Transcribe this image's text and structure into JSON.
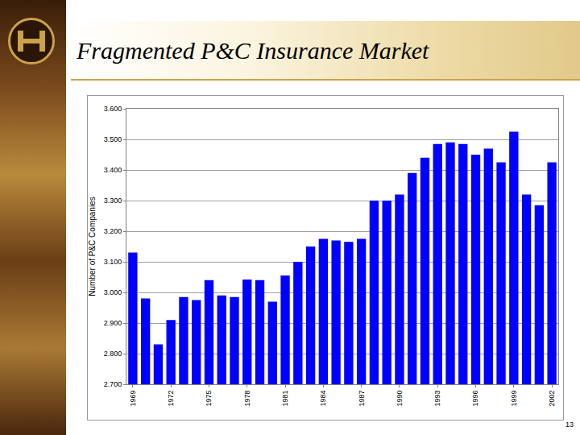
{
  "chart_data": {
    "type": "bar",
    "title": "Fragmented P&C Insurance Market",
    "y_label": "Number of P&C Companies",
    "annotations": [
      "13"
    ],
    "categories": [
      "1969",
      null,
      null,
      "1972",
      null,
      null,
      "1975",
      null,
      null,
      "1978",
      null,
      null,
      "1981",
      null,
      null,
      "1984",
      null,
      null,
      "1987",
      null,
      null,
      "1990",
      null,
      null,
      "1993",
      null,
      null,
      "1996",
      null,
      null,
      "1999",
      null,
      null,
      "2002"
    ],
    "values": [
      3130,
      2980,
      2830,
      2910,
      2985,
      2975,
      3040,
      2990,
      2985,
      3042,
      3040,
      2970,
      3055,
      3100,
      3150,
      3175,
      3170,
      3165,
      3175,
      3300,
      3300,
      3320,
      3390,
      3440,
      3485,
      3490,
      3485,
      3450,
      3470,
      3425,
      3525,
      3320,
      3285,
      3425
    ],
    "color": "#0000ff",
    "ylim": [
      2700,
      3600
    ],
    "yticks": [
      {
        "value": 2700,
        "label": "2.700"
      },
      {
        "value": 2800,
        "label": "2.800"
      },
      {
        "value": 2900,
        "label": "2.900"
      },
      {
        "value": 3000,
        "label": "3.000"
      },
      {
        "value": 3100,
        "label": "3.100"
      },
      {
        "value": 3200,
        "label": "3.200"
      },
      {
        "value": 3300,
        "label": "3.300"
      },
      {
        "value": 3400,
        "label": "3.400"
      },
      {
        "value": 3500,
        "label": "3.500"
      },
      {
        "value": 3600,
        "label": "3.600"
      }
    ],
    "grid": true
  }
}
